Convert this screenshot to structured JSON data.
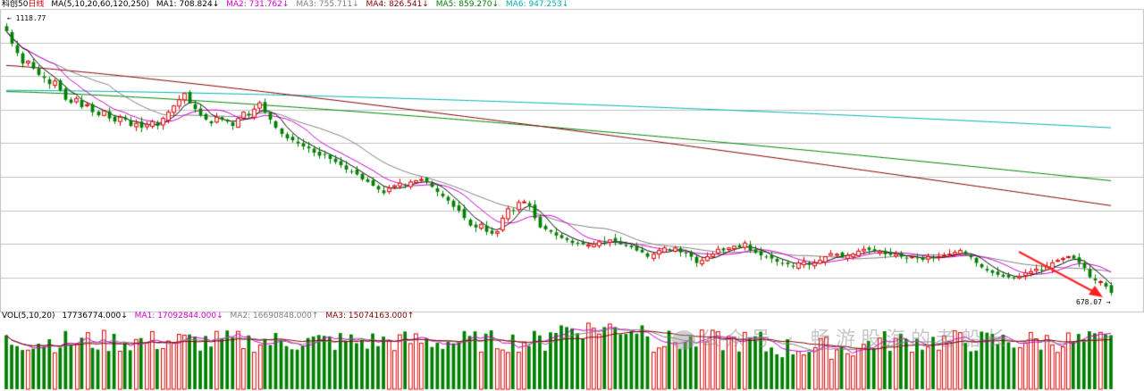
{
  "price_header": {
    "symbol": "科创50",
    "period": "日线",
    "ma_params": "MA(5,10,20,60,120,250)",
    "ma1": {
      "label": "MA1:",
      "value": "708.824",
      "arrow": "↓",
      "color": "#000000"
    },
    "ma2": {
      "label": "MA2:",
      "value": "731.762",
      "arrow": "↓",
      "color": "#d000d0"
    },
    "ma3": {
      "label": "MA3:",
      "value": "755.711",
      "arrow": "↓",
      "color": "#808080"
    },
    "ma4": {
      "label": "MA4:",
      "value": "826.541",
      "arrow": "↓",
      "color": "#800000"
    },
    "ma5": {
      "label": "MA5:",
      "value": "859.270",
      "arrow": "↓",
      "color": "#008000"
    },
    "ma6": {
      "label": "MA6:",
      "value": "947.253",
      "arrow": "↓",
      "color": "#00b0b0"
    }
  },
  "vol_header": {
    "params": "VOL(5,10,20)",
    "vol": {
      "value": "17736774.000",
      "arrow": "↓"
    },
    "ma1": {
      "label": "MA1:",
      "value": "17092844.000",
      "arrow": "↓"
    },
    "ma2": {
      "label": "MA2:",
      "value": "16690848.000",
      "arrow": "↑"
    },
    "ma3": {
      "label": "MA3:",
      "value": "15074163.000",
      "arrow": "↑"
    }
  },
  "high_label": "1118.77",
  "low_label": "678.07",
  "watermark": "公众号 · 畅游股海的老船长",
  "colors": {
    "up": "#e00000",
    "down": "#008000",
    "grid": "#c0c0c0",
    "arrow": "#ff2020"
  },
  "chart_data": {
    "type": "candlestick",
    "price_range": [
      678.07,
      1118.77
    ],
    "grid": true,
    "closes": [
      1100,
      1080,
      1065,
      1048,
      1052,
      1040,
      1030,
      1025,
      1015,
      1020,
      1005,
      990,
      985,
      992,
      978,
      982,
      970,
      965,
      972,
      960,
      955,
      962,
      958,
      948,
      952,
      945,
      950,
      955,
      948,
      960,
      970,
      980,
      990,
      1000,
      985,
      975,
      965,
      958,
      952,
      962,
      958,
      955,
      948,
      960,
      970,
      965,
      975,
      985,
      970,
      958,
      945,
      935,
      928,
      925,
      920,
      915,
      912,
      905,
      900,
      902,
      895,
      890,
      885,
      878,
      875,
      870,
      862,
      858,
      852,
      846,
      840,
      848,
      852,
      856,
      852,
      858,
      860,
      862,
      858,
      850,
      842,
      835,
      828,
      818,
      812,
      800,
      788,
      785,
      790,
      778,
      775,
      778,
      800,
      815,
      812,
      825,
      826,
      820,
      800,
      785,
      782,
      778,
      772,
      768,
      765,
      760,
      760,
      758,
      757,
      758,
      762,
      763,
      765,
      762,
      758,
      755,
      753,
      748,
      745,
      738,
      742,
      748,
      752,
      749,
      752,
      745,
      744,
      738,
      728,
      732,
      738,
      742,
      750,
      748,
      752,
      755,
      753,
      760,
      748,
      744,
      740,
      738,
      735,
      730,
      728,
      726,
      722,
      728,
      730,
      725,
      728,
      732,
      738,
      743,
      742,
      737,
      740,
      742,
      747,
      750,
      749,
      746,
      746,
      742,
      741,
      742,
      738,
      735,
      738,
      736,
      733,
      738,
      736,
      738,
      740,
      742,
      745,
      748,
      742,
      737,
      728,
      721,
      716,
      712,
      709,
      706,
      705,
      703,
      706,
      712,
      714,
      718,
      716,
      722,
      728,
      732,
      735,
      738,
      735,
      728,
      720,
      705,
      700,
      698,
      690,
      680
    ]
  }
}
